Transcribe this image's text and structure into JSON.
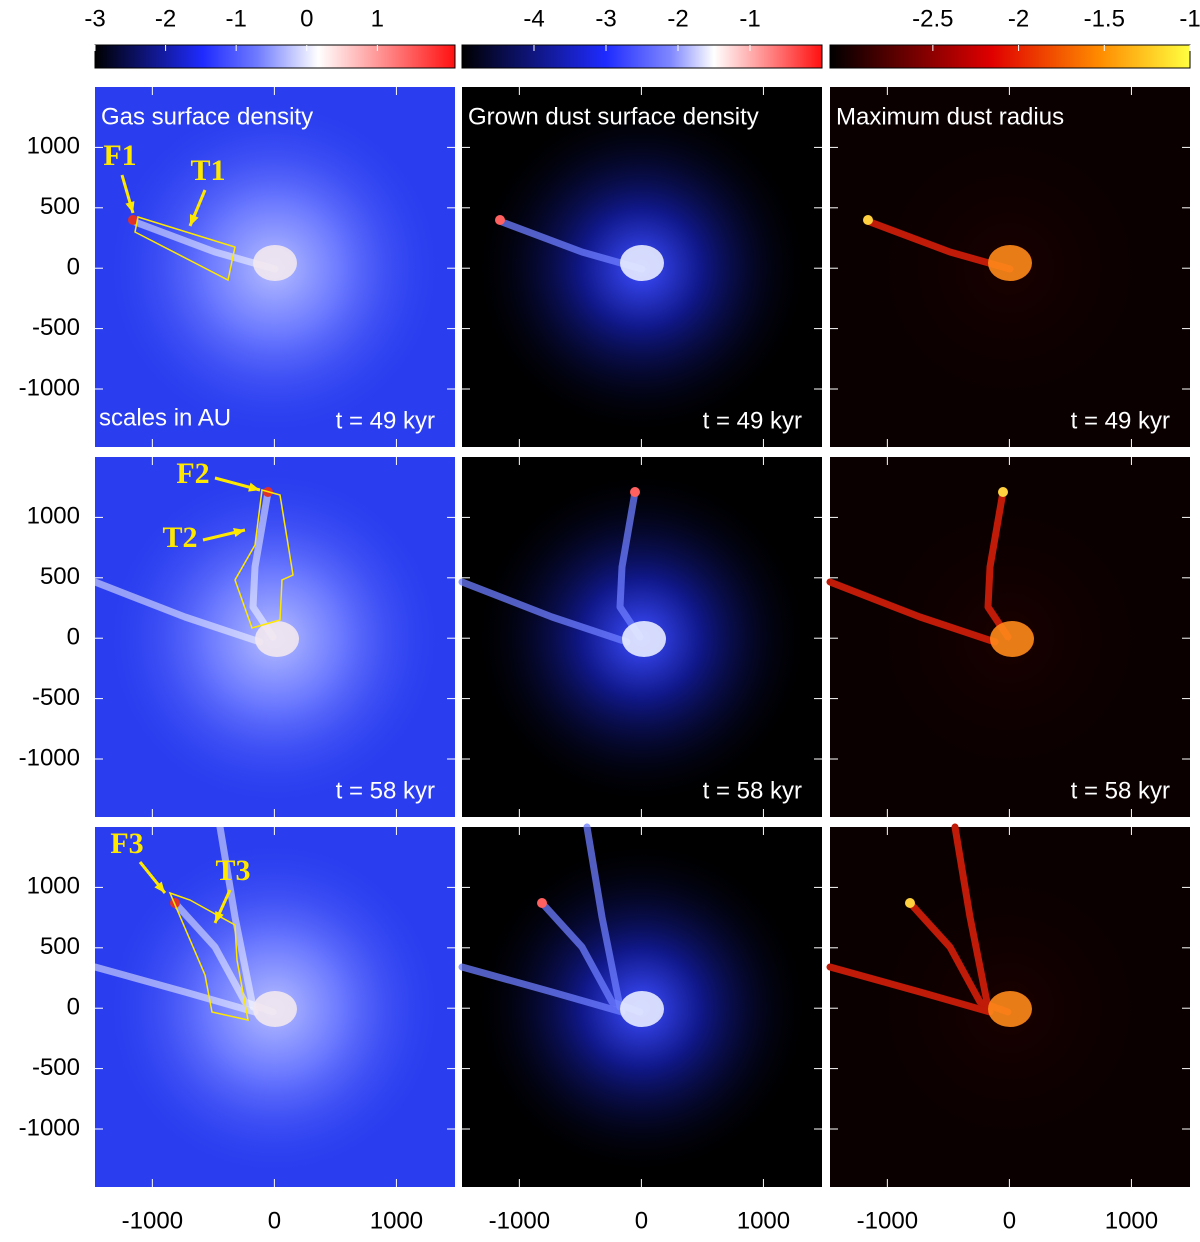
{
  "colorbars": [
    {
      "lim": [
        -3,
        2.1
      ],
      "ticks": [
        -3,
        -2,
        -1,
        0,
        1
      ]
    },
    {
      "lim": [
        -5,
        0
      ],
      "ticks": [
        -4,
        -3,
        -2,
        -1
      ]
    },
    {
      "lim": [
        -3.1,
        -1
      ],
      "ticks": [
        -2.5,
        -2,
        -1.5,
        -1
      ]
    }
  ],
  "axes": {
    "xlim": [
      -1470,
      1480
    ],
    "ylim": [
      -1480,
      1500
    ],
    "xticks": [
      -1000,
      0,
      1000
    ],
    "yticks": [
      -1000,
      -500,
      0,
      500,
      1000
    ]
  },
  "column_titles": [
    "Gas surface density",
    "Grown dust surface density",
    "Maximum dust radius"
  ],
  "time_labels": [
    "t = 49 kyr",
    "t = 58 kyr"
  ],
  "scale_note": "scales in AU",
  "annotations": [
    [
      "F1",
      "T1"
    ],
    [
      "F2",
      "T2"
    ],
    [
      "F3",
      "T3"
    ]
  ]
}
